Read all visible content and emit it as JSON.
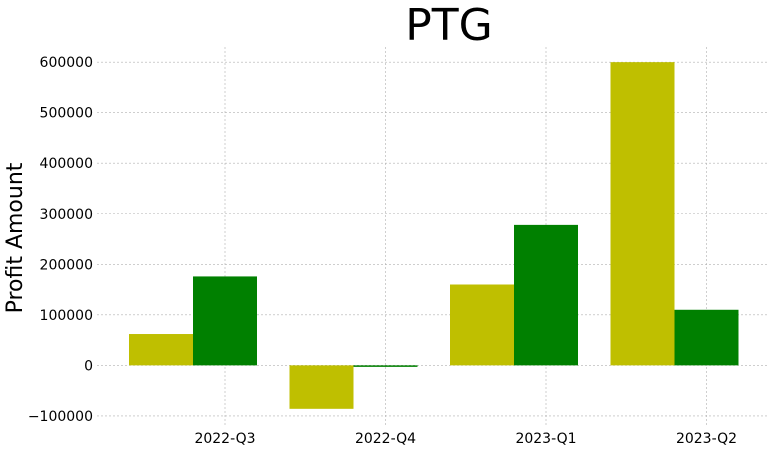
{
  "chart_data": {
    "type": "bar",
    "title": "PTG",
    "xlabel": "",
    "ylabel": "Profit Amount",
    "categories": [
      "2022-Q3",
      "2022-Q4",
      "2023-Q1",
      "2023-Q2"
    ],
    "series": [
      {
        "values": [
          62000,
          -86000,
          160000,
          600000
        ],
        "color": "#bfbf00"
      },
      {
        "values": [
          176000,
          -3000,
          278000,
          110000
        ],
        "color": "#008000"
      }
    ],
    "ylim": [
      -120000,
      630000
    ],
    "yticks": [
      -100000,
      0,
      100000,
      200000,
      300000,
      400000,
      500000,
      600000
    ],
    "ytick_labels": [
      "−100000",
      "0",
      "100000",
      "200000",
      "300000",
      "400000",
      "500000",
      "600000"
    ],
    "grid": true,
    "legend": "none"
  }
}
